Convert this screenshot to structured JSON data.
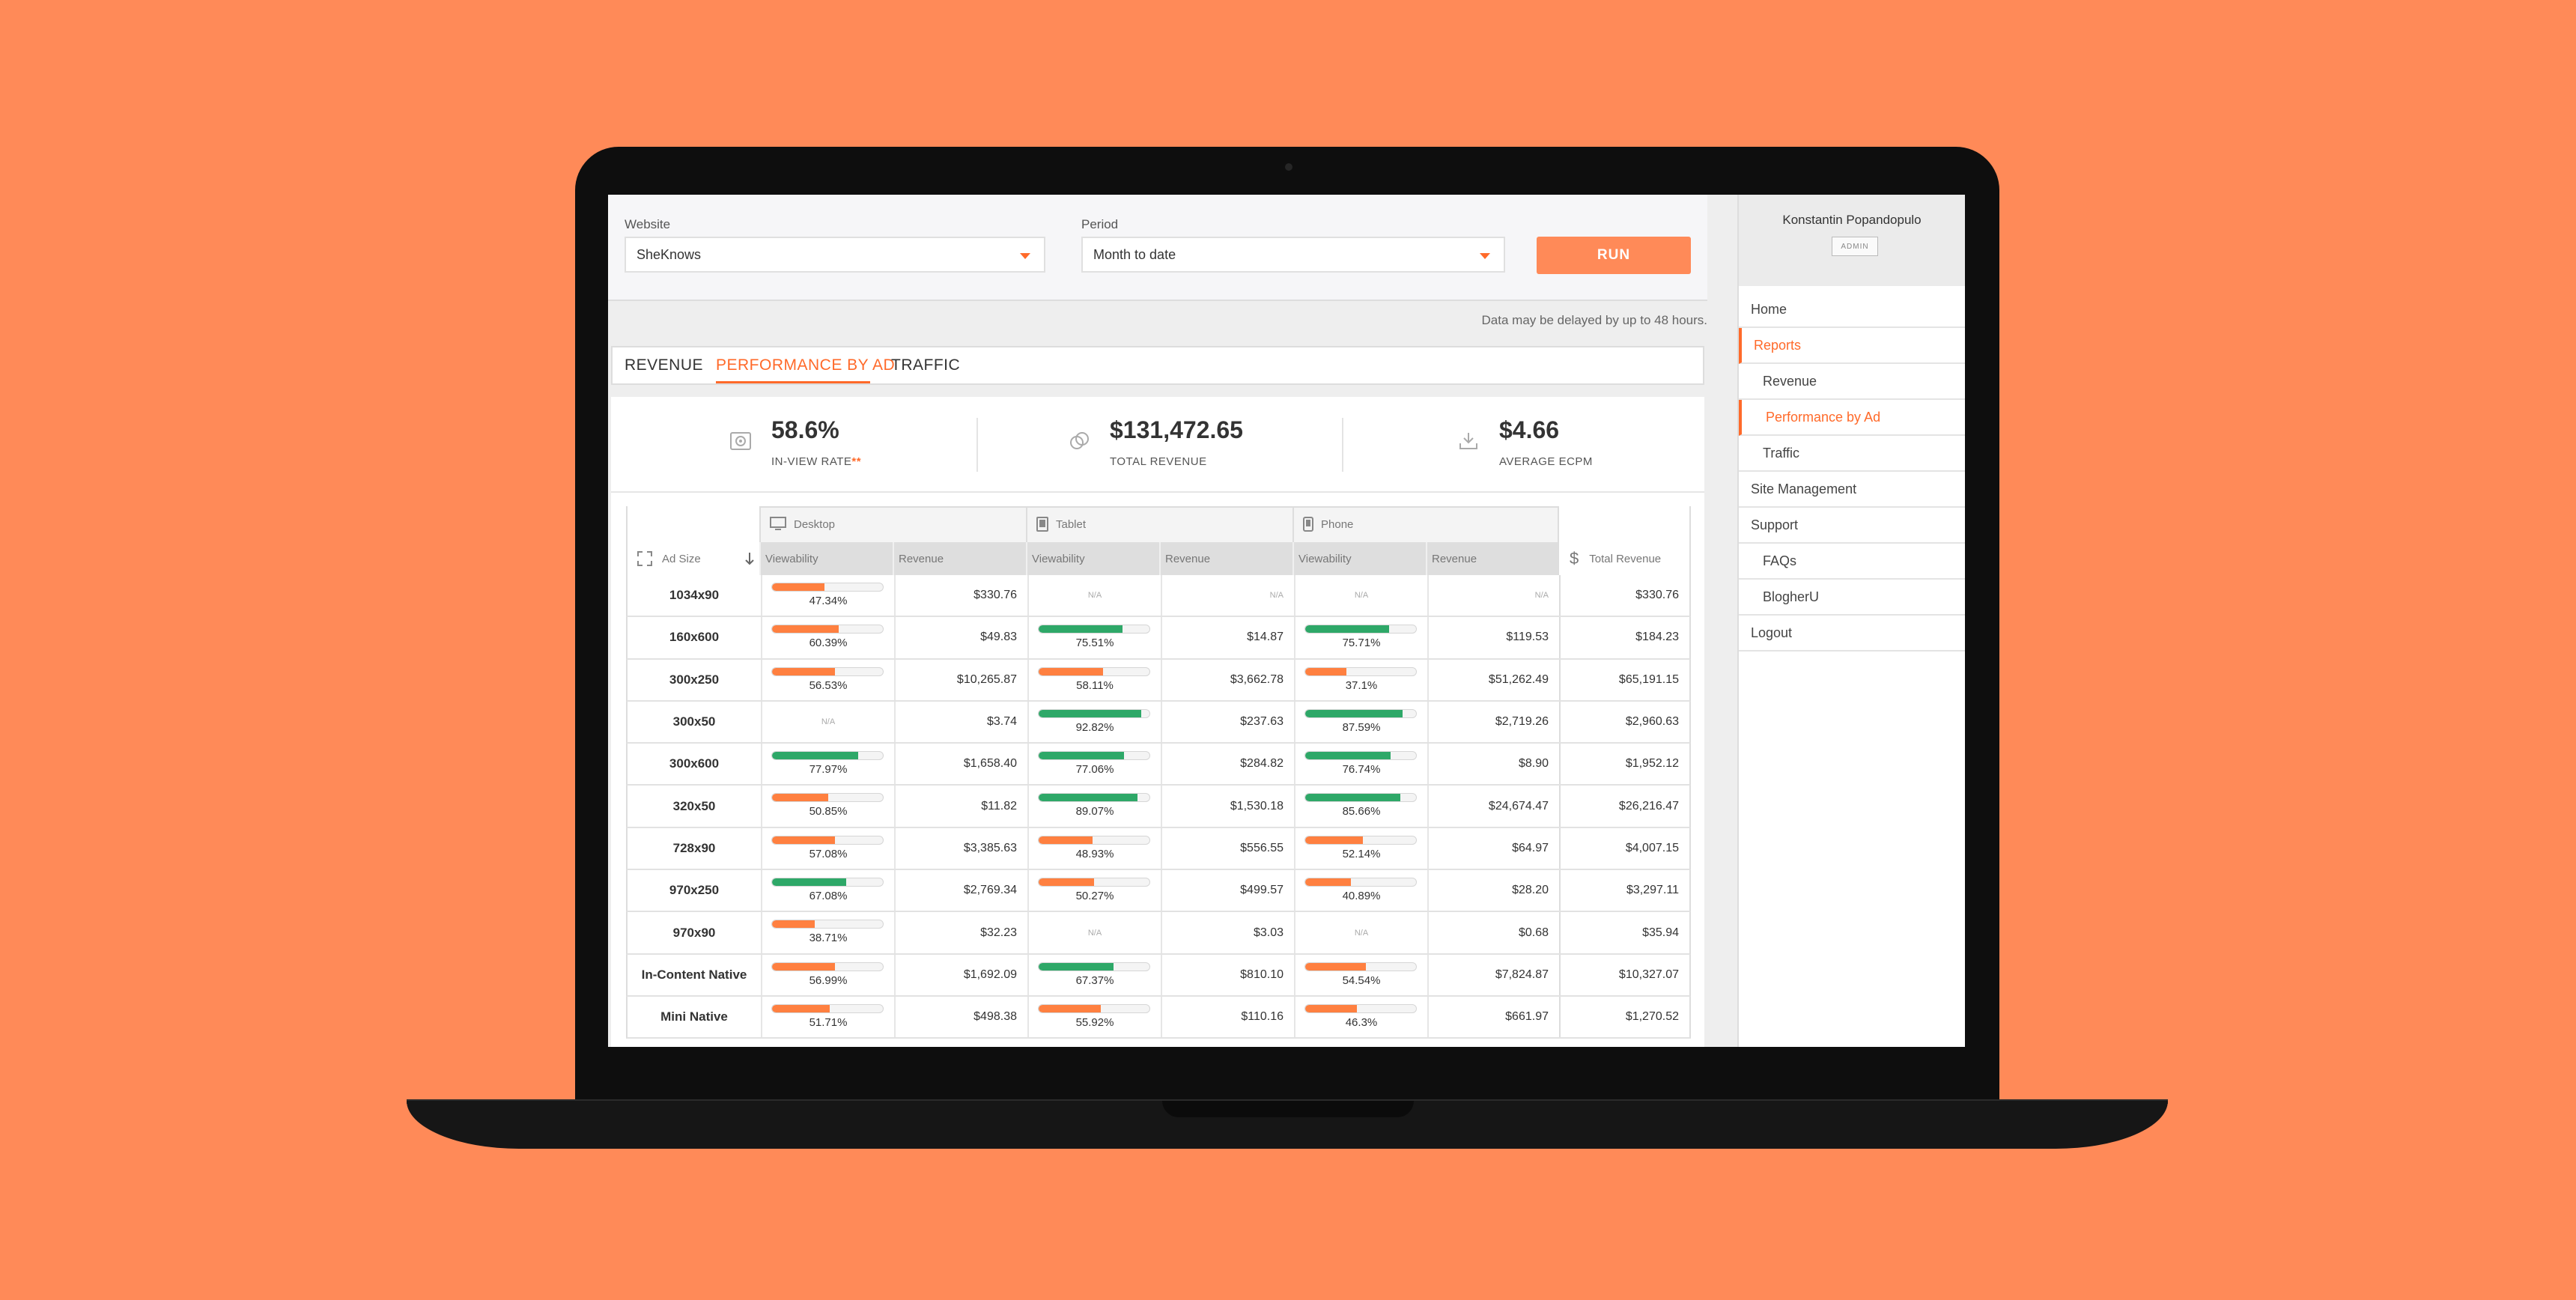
{
  "filters": {
    "website_label": "Website",
    "website_value": "SheKnows",
    "period_label": "Period",
    "period_value": "Month to date",
    "run_label": "RUN"
  },
  "note": "Data may be delayed by up to 48 hours.",
  "tabs": [
    {
      "label": "REVENUE"
    },
    {
      "label": "PERFORMANCE BY AD"
    },
    {
      "label": "TRAFFIC"
    }
  ],
  "kpis": {
    "inview_value": "58.6%",
    "inview_label": "IN-VIEW RATE",
    "inview_stars": "**",
    "revenue_value": "$131,472.65",
    "revenue_label": "TOTAL REVENUE",
    "ecpm_value": "$4.66",
    "ecpm_label": "AVERAGE ECPM"
  },
  "table": {
    "devices": [
      "Desktop",
      "Tablet",
      "Phone"
    ],
    "ad_size_header": "Ad Size",
    "viewability_header": "Viewability",
    "revenue_header": "Revenue",
    "total_header": "Total Revenue",
    "na": "N/A",
    "colors": {
      "good": "#2ea868",
      "bad": "#ff8040"
    },
    "rows": [
      {
        "size": "1034x90",
        "d_v": 47.34,
        "d_r": "$330.76",
        "t_v": null,
        "t_r": "N/A",
        "p_v": null,
        "p_r": "N/A",
        "total": "$330.76"
      },
      {
        "size": "160x600",
        "d_v": 60.39,
        "d_r": "$49.83",
        "t_v": 75.51,
        "t_r": "$14.87",
        "p_v": 75.71,
        "p_r": "$119.53",
        "total": "$184.23"
      },
      {
        "size": "300x250",
        "d_v": 56.53,
        "d_r": "$10,265.87",
        "t_v": 58.11,
        "t_r": "$3,662.78",
        "p_v": 37.1,
        "p_r": "$51,262.49",
        "total": "$65,191.15"
      },
      {
        "size": "300x50",
        "d_v": null,
        "d_r": "$3.74",
        "t_v": 92.82,
        "t_r": "$237.63",
        "p_v": 87.59,
        "p_r": "$2,719.26",
        "total": "$2,960.63"
      },
      {
        "size": "300x600",
        "d_v": 77.97,
        "d_r": "$1,658.40",
        "t_v": 77.06,
        "t_r": "$284.82",
        "p_v": 76.74,
        "p_r": "$8.90",
        "total": "$1,952.12"
      },
      {
        "size": "320x50",
        "d_v": 50.85,
        "d_r": "$11.82",
        "t_v": 89.07,
        "t_r": "$1,530.18",
        "p_v": 85.66,
        "p_r": "$24,674.47",
        "total": "$26,216.47"
      },
      {
        "size": "728x90",
        "d_v": 57.08,
        "d_r": "$3,385.63",
        "t_v": 48.93,
        "t_r": "$556.55",
        "p_v": 52.14,
        "p_r": "$64.97",
        "total": "$4,007.15"
      },
      {
        "size": "970x250",
        "d_v": 67.08,
        "d_r": "$2,769.34",
        "t_v": 50.27,
        "t_r": "$499.57",
        "p_v": 40.89,
        "p_r": "$28.20",
        "total": "$3,297.11"
      },
      {
        "size": "970x90",
        "d_v": 38.71,
        "d_r": "$32.23",
        "t_v": null,
        "t_r": "$3.03",
        "p_v": null,
        "p_r": "$0.68",
        "total": "$35.94"
      },
      {
        "size": "In-Content Native",
        "d_v": 56.99,
        "d_r": "$1,692.09",
        "t_v": 67.37,
        "t_r": "$810.10",
        "p_v": 54.54,
        "p_r": "$7,824.87",
        "total": "$10,327.07"
      },
      {
        "size": "Mini Native",
        "d_v": 51.71,
        "d_r": "$498.38",
        "t_v": 55.92,
        "t_r": "$110.16",
        "p_v": 46.3,
        "p_r": "$661.97",
        "total": "$1,270.52"
      }
    ]
  },
  "sidebar": {
    "user_name": "Konstantin Popandopulo",
    "role": "ADMIN",
    "items": [
      {
        "label": "Home",
        "sub": false,
        "active": false
      },
      {
        "label": "Reports",
        "sub": false,
        "active": true
      },
      {
        "label": "Revenue",
        "sub": true,
        "active": false
      },
      {
        "label": "Performance by Ad",
        "sub": true,
        "active": true
      },
      {
        "label": "Traffic",
        "sub": true,
        "active": false
      },
      {
        "label": "Site Management",
        "sub": false,
        "active": false
      },
      {
        "label": "Support",
        "sub": false,
        "active": false
      },
      {
        "label": "FAQs",
        "sub": true,
        "active": false
      },
      {
        "label": "BlogherU",
        "sub": true,
        "active": false
      },
      {
        "label": "Logout",
        "sub": false,
        "active": false
      }
    ]
  }
}
